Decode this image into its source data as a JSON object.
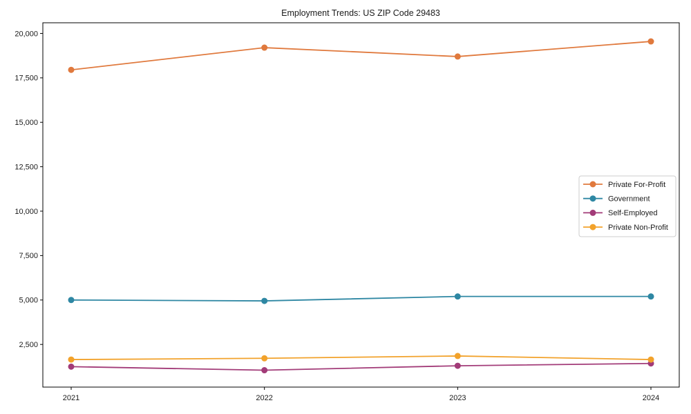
{
  "chart_data": {
    "type": "line",
    "title": "Employment Trends: US ZIP Code 29483",
    "categories": [
      "2021",
      "2022",
      "2023",
      "2024"
    ],
    "series": [
      {
        "name": "Private For-Profit",
        "color": "#E0793D",
        "values": [
          17950,
          19200,
          18700,
          19550
        ]
      },
      {
        "name": "Government",
        "color": "#2E87A3",
        "values": [
          5000,
          4950,
          5200,
          5200
        ]
      },
      {
        "name": "Self-Employed",
        "color": "#A23B78",
        "values": [
          1250,
          1050,
          1300,
          1430
        ]
      },
      {
        "name": "Private Non-Profit",
        "color": "#F2A22B",
        "values": [
          1650,
          1720,
          1850,
          1650
        ]
      }
    ],
    "xlabel": "",
    "ylabel": "",
    "ylim": [
      100,
      20600
    ],
    "yticks": [
      2500,
      5000,
      7500,
      10000,
      12500,
      15000,
      17500,
      20000
    ],
    "grid": false,
    "legend_position": "center-right",
    "marker": "circle",
    "axis_color": "#000000",
    "tick_label_color": "#1a1a1a",
    "legend_border_color": "#cccccc",
    "background_color": "#ffffff"
  }
}
